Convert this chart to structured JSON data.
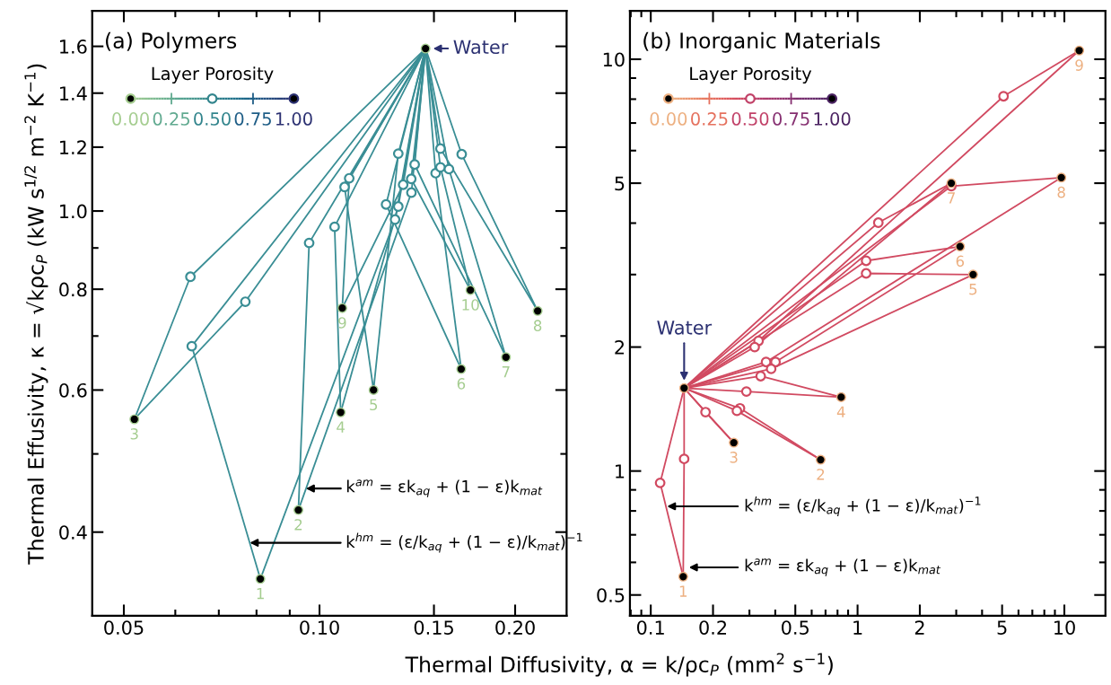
{
  "chart_data": [
    {
      "type": "scatter",
      "title": "(a) Polymers",
      "xlabel": "Thermal Diffusivity, α = k/ρc$_{P}$ (mm$^{2}$ s$^{−1}$)",
      "ylabel": "Thermal Effusivity, κ = √kρc$_{P}$ (kW s$^{1/2}$ m$^{−2}$ K$^{−1}$)",
      "log": "xy",
      "marker": "circle",
      "xlim": [
        0.0447,
        0.24
      ],
      "ylim": [
        0.315,
        1.77
      ],
      "xticks": [
        {
          "value": 0.05,
          "label": "0.05"
        },
        {
          "value": 0.06,
          "label": null
        },
        {
          "value": 0.07,
          "label": null
        },
        {
          "value": 0.08,
          "label": null
        },
        {
          "value": 0.09,
          "label": null
        },
        {
          "value": 0.1,
          "label": "0.10"
        },
        {
          "value": 0.15,
          "label": "0.15"
        },
        {
          "value": 0.2,
          "label": "0.20"
        }
      ],
      "yticks": [
        0.4,
        {
          "value": 0.5,
          "label": null
        },
        0.6,
        {
          "value": 0.7,
          "label": null
        },
        0.8,
        {
          "value": 0.9,
          "label": null
        },
        {
          "value": 1.0,
          "label": "1.0"
        },
        1.2,
        1.4,
        1.6
      ],
      "clabel": "Layer Porosity",
      "series": [
        {
          "type": "line",
          "marker": "none",
          "color": "#3a8e95",
          "x": [
            0.0811,
            0.0636,
            0.1456
          ],
          "values": [
            0.35,
            0.68,
            1.59
          ]
        },
        {
          "type": "line",
          "marker": "none",
          "color": "#3a8e95",
          "x": [
            0.0811,
            0.1307,
            0.1456
          ],
          "values": [
            0.35,
            0.976,
            1.59
          ]
        },
        {
          "type": "line",
          "marker": "none",
          "color": "#3a8e95",
          "x": [
            0.0928,
            0.0964,
            0.1456
          ],
          "values": [
            0.426,
            0.913,
            1.59
          ]
        },
        {
          "type": "line",
          "marker": "none",
          "color": "#3a8e95",
          "x": [
            0.0928,
            0.1385,
            0.1456
          ],
          "values": [
            0.426,
            1.054,
            1.59
          ]
        },
        {
          "type": "line",
          "marker": "none",
          "color": "#3a8e95",
          "x": [
            0.0519,
            0.0633,
            0.1456
          ],
          "values": [
            0.552,
            0.829,
            1.59
          ]
        },
        {
          "type": "line",
          "marker": "none",
          "color": "#3a8e95",
          "x": [
            0.0519,
            0.0769,
            0.1456
          ],
          "values": [
            0.552,
            0.772,
            1.59
          ]
        },
        {
          "type": "line",
          "marker": "none",
          "color": "#3a8e95",
          "x": [
            0.1078,
            0.1055,
            0.1456
          ],
          "values": [
            0.563,
            0.956,
            1.59
          ]
        },
        {
          "type": "line",
          "marker": "none",
          "color": "#3a8e95",
          "x": [
            0.1078,
            0.1322,
            0.1456
          ],
          "values": [
            0.563,
            1.013,
            1.59
          ]
        },
        {
          "type": "line",
          "marker": "none",
          "color": "#3a8e95",
          "x": [
            0.1211,
            0.1093,
            0.1456
          ],
          "values": [
            0.6,
            1.071,
            1.59
          ]
        },
        {
          "type": "line",
          "marker": "none",
          "color": "#3a8e95",
          "x": [
            0.1211,
            0.1322,
            0.1456
          ],
          "values": [
            0.6,
            1.178,
            1.59
          ]
        },
        {
          "type": "line",
          "marker": "none",
          "color": "#3a8e95",
          "x": [
            0.1084,
            0.1111,
            0.1456
          ],
          "values": [
            0.758,
            1.098,
            1.59
          ]
        },
        {
          "type": "line",
          "marker": "none",
          "color": "#3a8e95",
          "x": [
            0.1084,
            0.1345,
            0.1456
          ],
          "values": [
            0.758,
            1.078,
            1.59
          ]
        },
        {
          "type": "line",
          "marker": "none",
          "color": "#3a8e95",
          "x": [
            0.1652,
            0.1266,
            0.1456
          ],
          "values": [
            0.637,
            1.019,
            1.59
          ]
        },
        {
          "type": "line",
          "marker": "none",
          "color": "#3a8e95",
          "x": [
            0.1652,
            0.1509,
            0.1456
          ],
          "values": [
            0.637,
            1.114,
            1.59
          ]
        },
        {
          "type": "line",
          "marker": "none",
          "color": "#3a8e95",
          "x": [
            0.1707,
            0.1384,
            0.1456
          ],
          "values": [
            0.798,
            1.096,
            1.59
          ]
        },
        {
          "type": "line",
          "marker": "none",
          "color": "#3a8e95",
          "x": [
            0.1707,
            0.1535,
            0.1456
          ],
          "values": [
            0.798,
            1.133,
            1.59
          ]
        },
        {
          "type": "line",
          "marker": "none",
          "color": "#3a8e95",
          "x": [
            0.1936,
            0.1401,
            0.1456
          ],
          "values": [
            0.659,
            1.142,
            1.59
          ]
        },
        {
          "type": "line",
          "marker": "none",
          "color": "#3a8e95",
          "x": [
            0.1936,
            0.1582,
            0.1456
          ],
          "values": [
            0.659,
            1.127,
            1.59
          ]
        },
        {
          "type": "line",
          "marker": "none",
          "color": "#3a8e95",
          "x": [
            0.2166,
            0.1535,
            0.1456
          ],
          "values": [
            0.752,
            1.195,
            1.59
          ]
        },
        {
          "type": "line",
          "marker": "none",
          "color": "#3a8e95",
          "x": [
            0.2166,
            0.1655,
            0.1456
          ],
          "values": [
            0.752,
            1.176,
            1.59
          ]
        },
        {
          "color": "#3a8e95",
          "x": [
            0.0633,
            0.0769,
            0.0964,
            0.1055,
            0.1093,
            0.1111,
            0.1266,
            0.1307,
            0.1322,
            0.1322,
            0.1345,
            0.1384,
            0.1385,
            0.1401,
            0.1509,
            0.1535,
            0.1535,
            0.1582,
            0.1655,
            0.0636
          ],
          "values": [
            0.829,
            0.772,
            0.913,
            0.956,
            1.071,
            1.098,
            1.019,
            0.976,
            1.013,
            1.178,
            1.078,
            1.096,
            1.054,
            1.142,
            1.114,
            1.195,
            1.133,
            1.127,
            1.176,
            0.68
          ]
        },
        {
          "color": "#000000",
          "x": [
            0.0811,
            0.0928,
            0.0519,
            0.1078,
            0.1211,
            0.1652,
            0.1936,
            0.2166,
            0.1084,
            0.1707,
            0.1456
          ],
          "values": [
            0.35,
            0.426,
            0.552,
            0.563,
            0.6,
            0.637,
            0.659,
            0.752,
            0.758,
            0.798,
            1.59
          ]
        }
      ],
      "annotations": [
        {
          "text": "Water",
          "x": 0.1456,
          "y": 1.59
        },
        {
          "text": "k$^{am}$ = εk$_{aq}$ + (1 − ε)k$_{mat}$",
          "x": 0.0953,
          "y": 0.453
        },
        {
          "text": "k$^{hm}$ = (ε/k$_{aq}$ + (1 − ε)/k$_{mat}$)$^{−1}$",
          "x": 0.0781,
          "y": 0.388
        },
        "0.00",
        "0.25",
        "0.50",
        "0.75",
        "1.00",
        {
          "text": "1",
          "x": 0.0811,
          "y": 0.35
        },
        {
          "text": "2",
          "x": 0.0928,
          "y": 0.426
        },
        {
          "text": "3",
          "x": 0.0519,
          "y": 0.552
        },
        {
          "text": "4",
          "x": 0.1078,
          "y": 0.563
        },
        {
          "text": "5",
          "x": 0.1211,
          "y": 0.6
        },
        {
          "text": "6",
          "x": 0.1652,
          "y": 0.637
        },
        {
          "text": "7",
          "x": 0.1936,
          "y": 0.659
        },
        {
          "text": "8",
          "x": 0.2166,
          "y": 0.752
        },
        {
          "text": "9",
          "x": 0.1084,
          "y": 0.758
        },
        {
          "text": "10",
          "x": 0.1707,
          "y": 0.798
        }
      ]
    },
    {
      "type": "scatter",
      "title": "(b) Inorganic Materials",
      "log": "xy",
      "marker": "circle",
      "xlim": [
        0.0793,
        15.8
      ],
      "ylim": [
        0.445,
        13.1
      ],
      "xticks": [
        {
          "value": 0.08,
          "label": null
        },
        {
          "value": 0.09,
          "label": null
        },
        0.1,
        0.2,
        {
          "value": 0.3,
          "label": null
        },
        {
          "value": 0.4,
          "label": null
        },
        0.5,
        {
          "value": 0.6,
          "label": null
        },
        {
          "value": 0.7,
          "label": null
        },
        {
          "value": 0.8,
          "label": null
        },
        {
          "value": 0.9,
          "label": null
        },
        1,
        2,
        {
          "value": 3,
          "label": null
        },
        {
          "value": 4,
          "label": null
        },
        5,
        {
          "value": 6,
          "label": null
        },
        {
          "value": 7,
          "label": null
        },
        {
          "value": 8,
          "label": null
        },
        {
          "value": 9,
          "label": null
        },
        10
      ],
      "yticks": [
        0.5,
        {
          "value": 0.6,
          "label": null
        },
        {
          "value": 0.7,
          "label": null
        },
        {
          "value": 0.8,
          "label": null
        },
        {
          "value": 0.9,
          "label": null
        },
        1,
        2,
        {
          "value": 3,
          "label": null
        },
        {
          "value": 4,
          "label": null
        },
        5,
        {
          "value": 6,
          "label": null
        },
        {
          "value": 7,
          "label": null
        },
        {
          "value": 8,
          "label": null
        },
        {
          "value": 9,
          "label": null
        },
        10
      ],
      "clabel": "Layer Porosity",
      "series": [
        {
          "type": "line",
          "marker": "none",
          "color": "#d14a61",
          "x": [
            0.1435,
            0.111,
            0.145
          ],
          "values": [
            0.554,
            0.936,
            1.59
          ]
        },
        {
          "type": "line",
          "marker": "none",
          "color": "#d14a61",
          "x": [
            0.1435,
            0.145,
            0.145
          ],
          "values": [
            0.554,
            1.07,
            1.59
          ]
        },
        {
          "type": "line",
          "marker": "none",
          "color": "#d14a61",
          "x": [
            0.663,
            0.261,
            0.145
          ],
          "values": [
            1.065,
            1.4,
            1.59
          ]
        },
        {
          "type": "line",
          "marker": "none",
          "color": "#d14a61",
          "x": [
            0.663,
            0.27,
            0.145
          ],
          "values": [
            1.065,
            1.42,
            1.59
          ]
        },
        {
          "type": "line",
          "marker": "none",
          "color": "#d14a61",
          "x": [
            0.252,
            0.184,
            0.145
          ],
          "values": [
            1.172,
            1.39,
            1.59
          ]
        },
        {
          "type": "line",
          "marker": "none",
          "color": "#d14a61",
          "x": [
            0.252,
            0.145
          ],
          "values": [
            1.172,
            1.59
          ]
        },
        {
          "type": "line",
          "marker": "none",
          "color": "#d14a61",
          "x": [
            0.833,
            0.29,
            0.145
          ],
          "values": [
            1.511,
            1.56,
            1.59
          ]
        },
        {
          "type": "line",
          "marker": "none",
          "color": "#d14a61",
          "x": [
            0.833,
            0.34,
            0.145
          ],
          "values": [
            1.511,
            1.7,
            1.59
          ]
        },
        {
          "type": "line",
          "marker": "none",
          "color": "#d14a61",
          "x": [
            3.62,
            1.1,
            0.145
          ],
          "values": [
            3.0,
            3.02,
            1.59
          ]
        },
        {
          "type": "line",
          "marker": "none",
          "color": "#d14a61",
          "x": [
            3.62,
            0.382,
            0.145
          ],
          "values": [
            3.0,
            1.77,
            1.59
          ]
        },
        {
          "type": "line",
          "marker": "none",
          "color": "#d14a61",
          "x": [
            3.13,
            1.1,
            0.145
          ],
          "values": [
            3.51,
            3.24,
            1.59
          ]
        },
        {
          "type": "line",
          "marker": "none",
          "color": "#d14a61",
          "x": [
            3.13,
            0.401,
            0.145
          ],
          "values": [
            3.51,
            1.84,
            1.59
          ]
        },
        {
          "type": "line",
          "marker": "none",
          "color": "#d14a61",
          "x": [
            2.84,
            1.26,
            0.145
          ],
          "values": [
            5.0,
            4.01,
            1.59
          ]
        },
        {
          "type": "line",
          "marker": "none",
          "color": "#d14a61",
          "x": [
            2.84,
            0.318,
            0.145
          ],
          "values": [
            5.0,
            2.0,
            1.59
          ]
        },
        {
          "type": "line",
          "marker": "none",
          "color": "#d14a61",
          "x": [
            9.67,
            2.84,
            0.145
          ],
          "values": [
            5.16,
            4.92,
            1.59
          ]
        },
        {
          "type": "line",
          "marker": "none",
          "color": "#d14a61",
          "x": [
            9.67,
            0.361,
            0.145
          ],
          "values": [
            5.16,
            1.84,
            1.59
          ]
        },
        {
          "type": "line",
          "marker": "none",
          "color": "#d14a61",
          "x": [
            11.8,
            5.08,
            0.145
          ],
          "values": [
            10.5,
            8.13,
            1.59
          ]
        },
        {
          "type": "line",
          "marker": "none",
          "color": "#d14a61",
          "x": [
            11.8,
            0.332,
            0.145
          ],
          "values": [
            10.5,
            2.07,
            1.59
          ]
        },
        {
          "color": "#d14a61",
          "x": [
            5.08,
            2.84,
            1.26,
            1.1,
            1.1,
            0.332,
            0.318,
            0.361,
            0.401,
            0.382,
            0.34,
            0.29,
            0.27,
            0.261,
            0.184,
            0.145,
            0.111
          ],
          "values": [
            8.13,
            4.92,
            4.01,
            3.24,
            3.02,
            2.07,
            2.0,
            1.84,
            1.84,
            1.77,
            1.7,
            1.56,
            1.42,
            1.4,
            1.39,
            1.07,
            0.936
          ]
        },
        {
          "color": "#000000",
          "x": [
            0.1435,
            0.663,
            0.252,
            0.833,
            3.62,
            3.13,
            2.84,
            9.67,
            11.8,
            0.145
          ],
          "values": [
            0.554,
            1.065,
            1.172,
            1.511,
            3.0,
            3.51,
            5.0,
            5.16,
            10.5,
            1.59
          ]
        }
      ],
      "annotations": [
        {
          "text": "Water",
          "x": 0.145,
          "y": 1.59
        },
        "k$^{hm}$ = (ε/k$_{aq}$ + (1 − ε)/k$_{mat}$)$^{−1}$",
        "k$^{am}$ = εk$_{aq}$ + (1 − ε)k$_{mat}$",
        "0.00",
        "0.25",
        "0.50",
        "0.75",
        "1.00",
        {
          "text": "1",
          "x": 0.1435,
          "y": 0.554
        },
        {
          "text": "2",
          "x": 0.663,
          "y": 1.065
        },
        {
          "text": "3",
          "x": 0.252,
          "y": 1.172
        },
        {
          "text": "4",
          "x": 0.833,
          "y": 1.511
        },
        {
          "text": "5",
          "x": 3.62,
          "y": 3.0
        },
        {
          "text": "6",
          "x": 3.13,
          "y": 3.51
        },
        {
          "text": "7",
          "x": 2.84,
          "y": 5.0
        },
        {
          "text": "8",
          "x": 9.67,
          "y": 5.16
        },
        {
          "text": "9",
          "x": 11.8,
          "y": 10.5
        }
      ]
    }
  ]
}
